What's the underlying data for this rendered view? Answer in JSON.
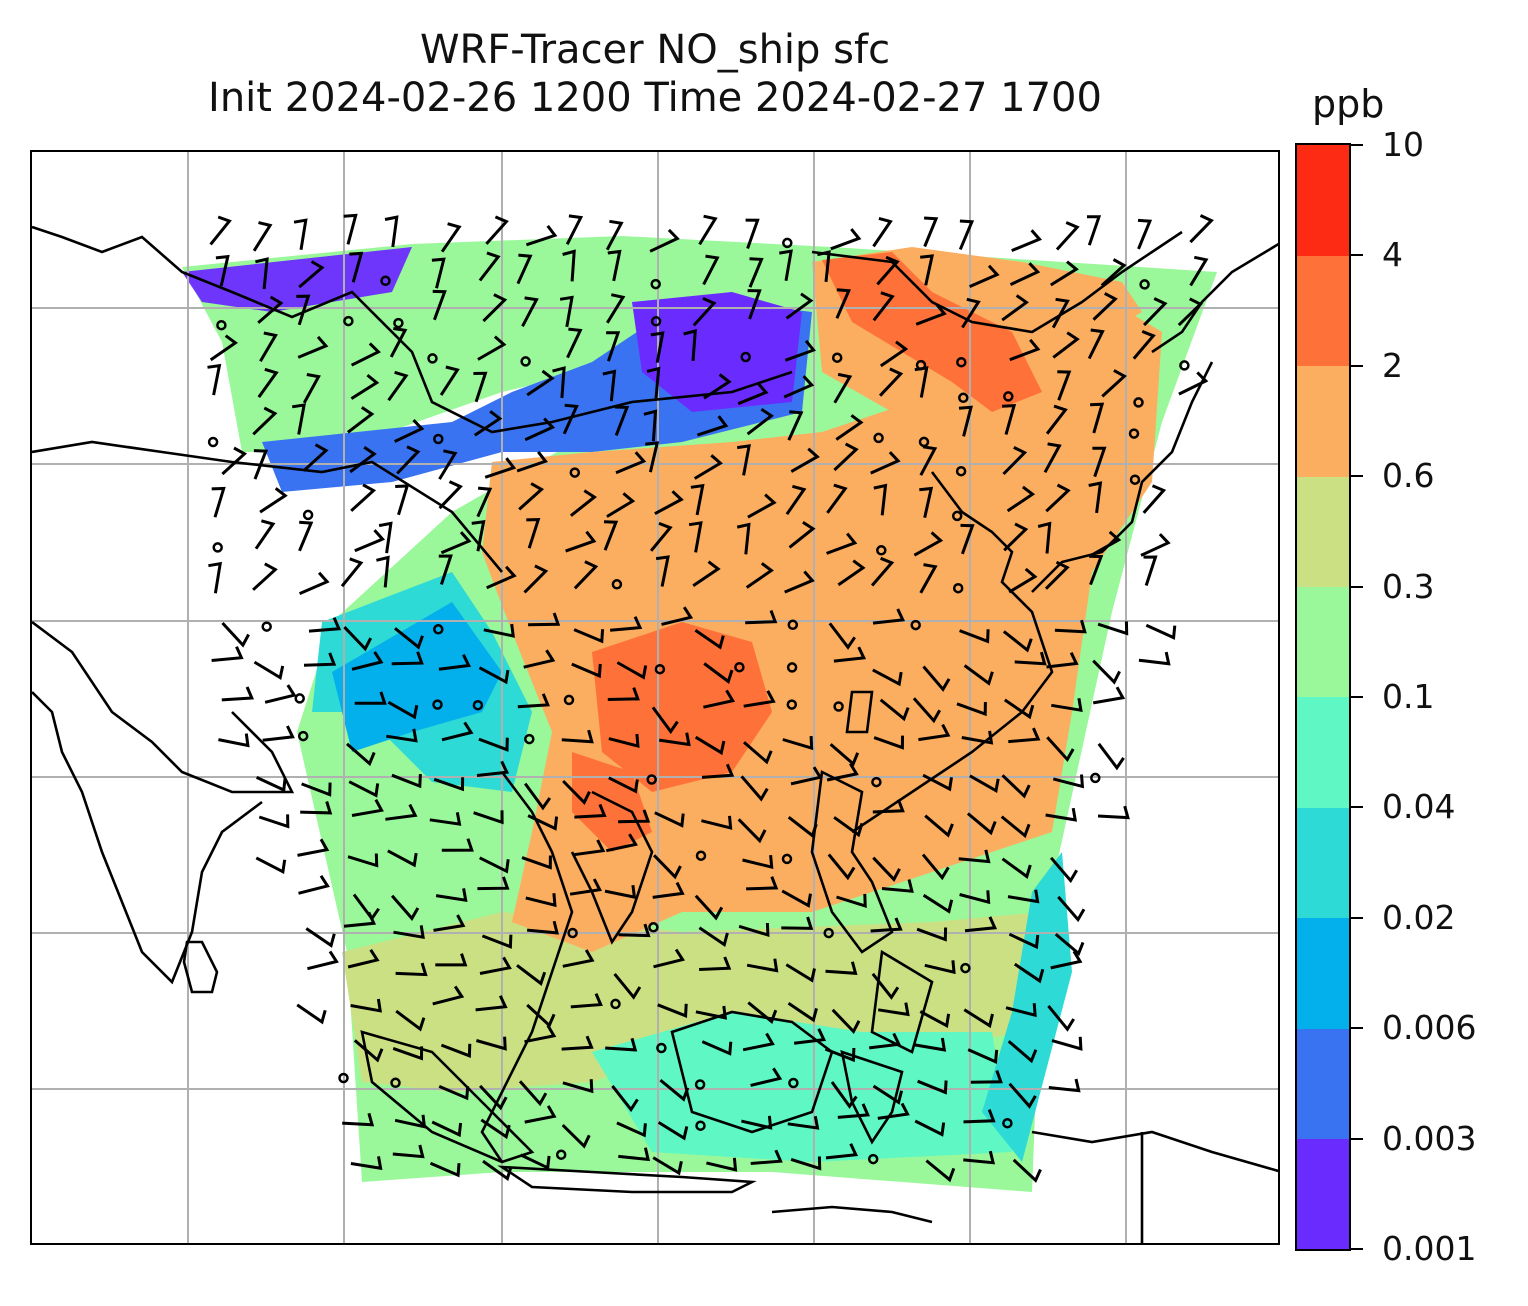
{
  "title": {
    "line1": "WRF-Tracer NO_ship sfc",
    "line2": "Init 2024-02-26 1200 Time 2024-02-27 1700"
  },
  "colorbar": {
    "label": "ppb",
    "levels": [
      "0.001",
      "0.003",
      "0.006",
      "0.02",
      "0.04",
      "0.1",
      "0.3",
      "0.6",
      "2",
      "4",
      "10"
    ],
    "colors": [
      "#6a2bff",
      "#3a73f2",
      "#04b0ec",
      "#2ddad6",
      "#5ff7c4",
      "#9af89a",
      "#cbe083",
      "#fbad60",
      "#fe7138",
      "#fe2b14"
    ]
  },
  "map": {
    "projection": "Mercator, South & Southeast / East Asia",
    "gridlines": true,
    "coastline_color": "#000000",
    "field": "NO_ship surface concentration",
    "overlay": "wind barbs and calm circles"
  }
}
